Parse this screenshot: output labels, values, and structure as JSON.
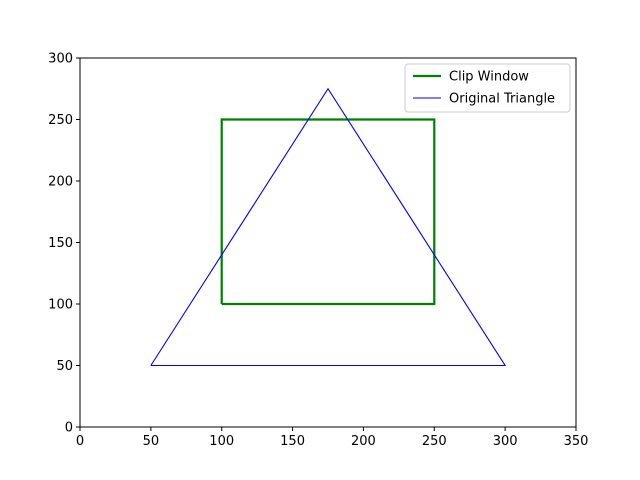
{
  "chart_data": {
    "type": "line",
    "title": "",
    "xlabel": "",
    "ylabel": "",
    "xlim": [
      0,
      350
    ],
    "ylim": [
      0,
      300
    ],
    "x_ticks": [
      0,
      50,
      100,
      150,
      200,
      250,
      300,
      350
    ],
    "y_ticks": [
      0,
      50,
      100,
      150,
      200,
      250,
      300
    ],
    "grid": false,
    "legend": {
      "placement": "top-right"
    },
    "series": [
      {
        "name": "Clip Window",
        "color": "#008000",
        "points": [
          [
            100,
            100
          ],
          [
            250,
            100
          ],
          [
            250,
            250
          ],
          [
            100,
            250
          ],
          [
            100,
            100
          ]
        ]
      },
      {
        "name": "Original Triangle",
        "color": "#0000ff",
        "points": [
          [
            50,
            50
          ],
          [
            300,
            50
          ],
          [
            175,
            275
          ],
          [
            50,
            50
          ]
        ]
      }
    ]
  }
}
